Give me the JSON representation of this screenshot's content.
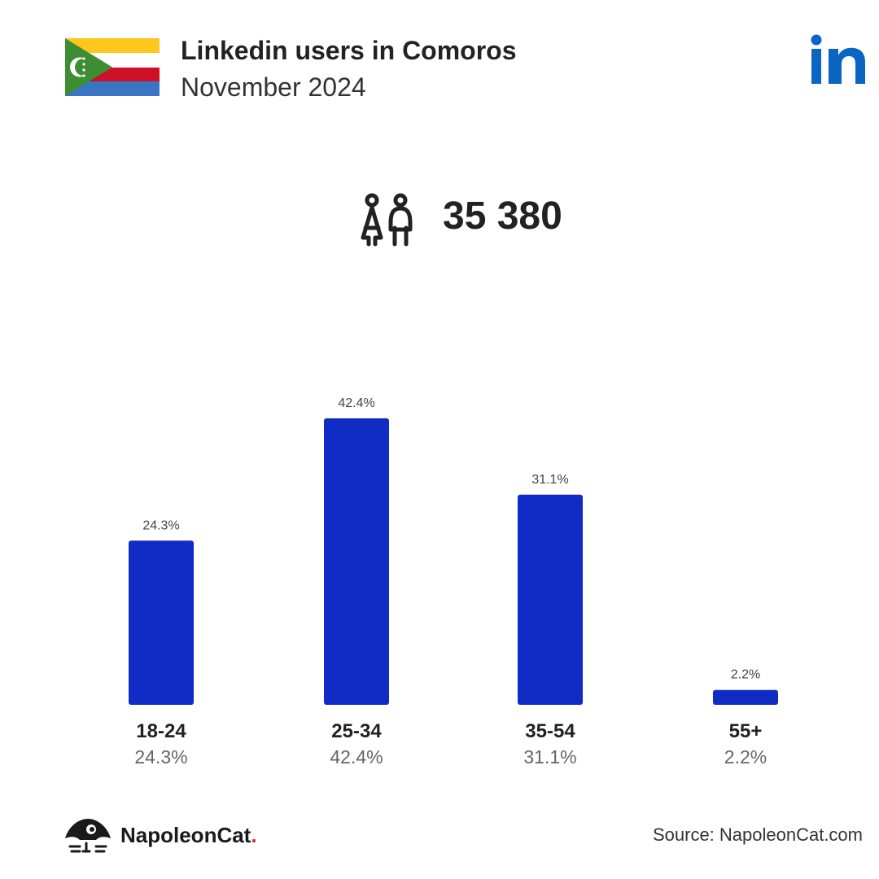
{
  "header": {
    "title": "Linkedin users in Comoros",
    "subtitle": "November 2024"
  },
  "flag": {
    "country": "Comoros",
    "colors": {
      "yellow": "#FFC61E",
      "white": "#FFFFFF",
      "red": "#CE1126",
      "blue": "#3A75C4",
      "green": "#3D8E33"
    }
  },
  "brand_icon": "linkedin-logo-icon",
  "brand_color": "#0A66C2",
  "total": {
    "icon": "users-icon",
    "value": "35 380"
  },
  "chart_data": {
    "type": "bar",
    "categories": [
      "18-24",
      "25-34",
      "35-54",
      "55+"
    ],
    "values": [
      24.3,
      42.4,
      31.1,
      2.2
    ],
    "value_labels": [
      "24.3%",
      "42.4%",
      "31.1%",
      "2.2%"
    ],
    "category_value_labels": [
      "24.3%",
      "42.4%",
      "31.1%",
      "2.2%"
    ],
    "unit": "%",
    "bar_color": "#102CC4",
    "ylim": [
      0,
      42.4
    ],
    "grid": false,
    "legend": "none"
  },
  "footer": {
    "brand_name": "NapoleonCat",
    "brand_dot": ".",
    "source": "Source: NapoleonCat.com"
  }
}
